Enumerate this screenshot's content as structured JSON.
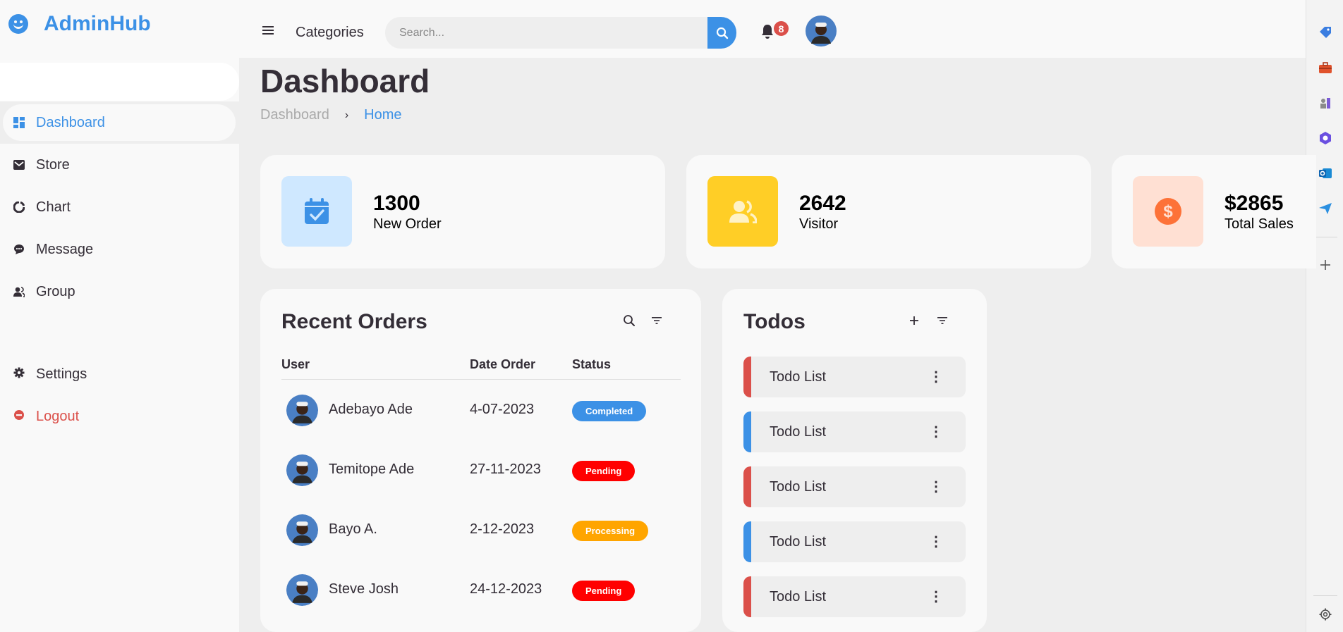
{
  "brand": {
    "name": "AdminHub"
  },
  "sidebar": {
    "items": [
      {
        "label": "Dashboard",
        "icon": "dashboard-icon",
        "active": true
      },
      {
        "label": "Store",
        "icon": "store-icon"
      },
      {
        "label": "Chart",
        "icon": "chart-icon"
      },
      {
        "label": "Message",
        "icon": "message-icon"
      },
      {
        "label": "Group",
        "icon": "group-icon"
      }
    ],
    "bottom": [
      {
        "label": "Settings",
        "icon": "gear-icon"
      },
      {
        "label": "Logout",
        "icon": "logout-icon"
      }
    ]
  },
  "nav": {
    "menu_icon": "menu-icon",
    "categories": "Categories",
    "search_placeholder": "Search...",
    "notifications": "8"
  },
  "main": {
    "title": "Dashboard",
    "breadcrumb": [
      "Dashboard",
      "Home"
    ]
  },
  "stats": [
    {
      "value": "1300",
      "label": "New Order",
      "icon": "calendar-check-icon",
      "bg": "#cfe8ff",
      "fg": "#3c91e6"
    },
    {
      "value": "2642",
      "label": "Visitor",
      "icon": "group-icon",
      "bg": "#ffce26",
      "fg": "#fff2c6"
    },
    {
      "value": "$2865",
      "label": "Total Sales",
      "icon": "dollar-circle-icon",
      "bg": "#ffe0d3",
      "fg": "#fd7238"
    }
  ],
  "orders": {
    "title": "Recent Orders",
    "columns": [
      "User",
      "Date Order",
      "Status"
    ],
    "rows": [
      {
        "user": "Adebayo Ade",
        "date": "4-07-2023",
        "status": "Completed",
        "color": "#3c91e6"
      },
      {
        "user": "Temitope Ade",
        "date": "27-11-2023",
        "status": "Pending",
        "color": "#ff0000"
      },
      {
        "user": "Bayo A.",
        "date": "2-12-2023",
        "status": "Processing",
        "color": "#ffa500"
      },
      {
        "user": "Steve Josh",
        "date": "24-12-2023",
        "status": "Pending",
        "color": "#ff0000"
      }
    ]
  },
  "todos": {
    "title": "Todos",
    "items": [
      {
        "text": "Todo List",
        "color": "#db504a"
      },
      {
        "text": "Todo List",
        "color": "#3c91e6"
      },
      {
        "text": "Todo List",
        "color": "#db504a"
      },
      {
        "text": "Todo List",
        "color": "#3c91e6"
      },
      {
        "text": "Todo List",
        "color": "#db504a"
      }
    ]
  }
}
